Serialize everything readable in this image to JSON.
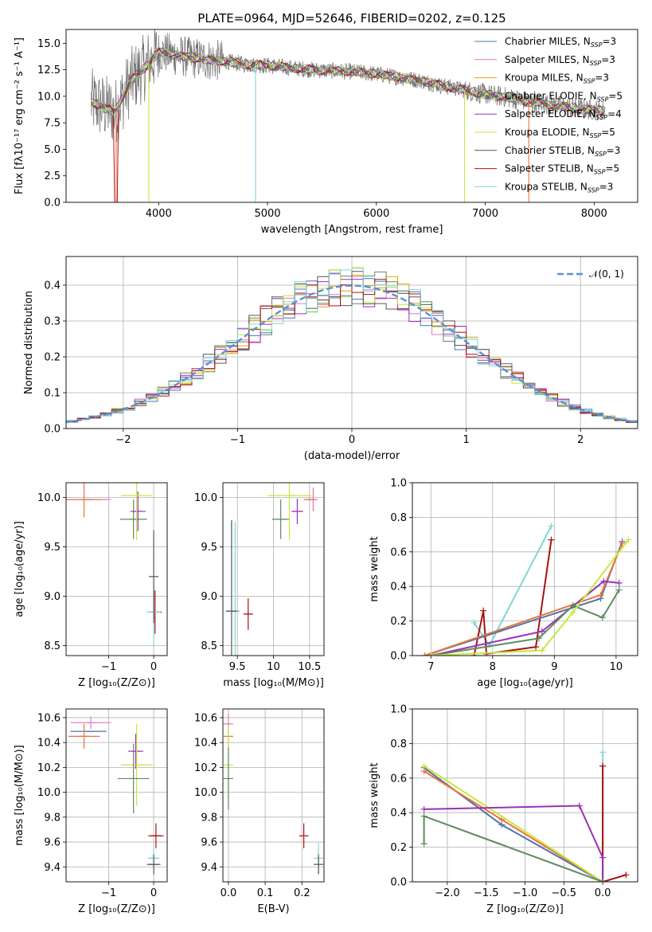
{
  "colors": {
    "chabrier_miles": "#4c72b0",
    "salpeter_miles": "#dd8452",
    "kroupa_miles": "#e6a400",
    "chabrier_elodie": "#dd6f6f",
    "salpeter_elodie": "#9b30b8",
    "kroupa_elodie": "#c8e640",
    "chabrier_stelib": "#555555",
    "salpeter_stelib": "#aa1111",
    "kroupa_stelib": "#7fd6d6",
    "model_orange": "#e8743b",
    "pink": "#e377c2",
    "sage": "#5f8a5f",
    "grid": "#b0b0b0",
    "normal": "#5b8fd6"
  },
  "chart_data": [
    {
      "id": "spectrum",
      "type": "line",
      "title": "PLATE=0964, MJD=52646, FIBERID=0202, z=0.125",
      "xlabel": "wavelength [Angstrom, rest frame]",
      "ylabel": "Flux [fλ10⁻¹⁷ erg cm⁻² s⁻¹ A⁻¹]",
      "xlim": [
        3150,
        8400
      ],
      "ylim": [
        0,
        16.3
      ],
      "xticks": [
        4000,
        5000,
        6000,
        7000,
        8000
      ],
      "yticks": [
        0.0,
        2.5,
        5.0,
        7.5,
        10.0,
        12.5,
        15.0
      ],
      "legend_position": "upper right",
      "continuum": [
        [
          3400,
          9.4
        ],
        [
          3600,
          8.5
        ],
        [
          3750,
          11.5
        ],
        [
          3900,
          13.0
        ],
        [
          4000,
          14.2
        ],
        [
          4200,
          13.8
        ],
        [
          4400,
          13.5
        ],
        [
          4600,
          13.3
        ],
        [
          4800,
          13.0
        ],
        [
          5000,
          12.9
        ],
        [
          5200,
          12.7
        ],
        [
          5400,
          12.5
        ],
        [
          5600,
          12.4
        ],
        [
          5800,
          12.3
        ],
        [
          6000,
          12.1
        ],
        [
          6200,
          11.8
        ],
        [
          6400,
          11.5
        ],
        [
          6600,
          11.0
        ],
        [
          6800,
          10.6
        ],
        [
          7000,
          10.2
        ],
        [
          7200,
          9.9
        ],
        [
          7400,
          9.5
        ],
        [
          7600,
          9.2
        ],
        [
          7800,
          8.9
        ],
        [
          8000,
          8.7
        ],
        [
          8100,
          8.6
        ]
      ],
      "series": [
        {
          "name": "Chabrier MILES, N_SSP=3",
          "label_main": "Chabrier MILES, N",
          "label_sub": "SSP",
          "label_tail": "=3",
          "color_key": "chabrier_miles"
        },
        {
          "name": "Salpeter MILES, N_SSP=3",
          "label_main": "Salpeter MILES, N",
          "label_sub": "SSP",
          "label_tail": "=3",
          "color_key": "pink"
        },
        {
          "name": "Kroupa MILES, N_SSP=3",
          "label_main": "Kroupa MILES, N",
          "label_sub": "SSP",
          "label_tail": "=3",
          "color_key": "kroupa_miles"
        },
        {
          "name": "Chabrier ELODIE, N_SSP=5",
          "label_main": "Chabrier ELODIE, N",
          "label_sub": "SSP",
          "label_tail": "=5",
          "color_key": "sage"
        },
        {
          "name": "Salpeter ELODIE, N_SSP=4",
          "label_main": "Salpeter ELODIE, N",
          "label_sub": "SSP",
          "label_tail": "=4",
          "color_key": "salpeter_elodie"
        },
        {
          "name": "Kroupa ELODIE, N_SSP=5",
          "label_main": "Kroupa ELODIE, N",
          "label_sub": "SSP",
          "label_tail": "=5",
          "color_key": "kroupa_elodie"
        },
        {
          "name": "Chabrier STELIB, N_SSP=3",
          "label_main": "Chabrier STELIB, N",
          "label_sub": "SSP",
          "label_tail": "=3",
          "color_key": "chabrier_stelib"
        },
        {
          "name": "Salpeter STELIB, N_SSP=5",
          "label_main": "Salpeter STELIB, N",
          "label_sub": "SSP",
          "label_tail": "=5",
          "color_key": "salpeter_stelib"
        },
        {
          "name": "Kroupa STELIB, N_SSP=3",
          "label_main": "Kroupa STELIB, N",
          "label_sub": "SSP",
          "label_tail": "=3",
          "color_key": "kroupa_stelib"
        }
      ]
    },
    {
      "id": "residuals",
      "type": "line",
      "xlabel": "(data-model)/error",
      "ylabel": "Normed distribution",
      "xlim": [
        -2.5,
        2.5
      ],
      "ylim": [
        0,
        0.48
      ],
      "xticks": [
        -2,
        -1,
        0,
        1,
        2
      ],
      "yticks": [
        0.0,
        0.1,
        0.2,
        0.3,
        0.4
      ],
      "grid": true,
      "reference_curve": {
        "label": "𝒩(0, 1)",
        "mean": 0,
        "sigma": 1,
        "peak": 0.3989
      },
      "histogram_bin_width": 0.1
    },
    {
      "id": "age_vs_Z",
      "type": "scatter",
      "xlabel": "Z [log₁₀(Z/Z⊙)]",
      "ylabel": "age  [log₁₀(age/yr)]",
      "xlim": [
        -1.95,
        0.3
      ],
      "ylim": [
        8.4,
        10.15
      ],
      "xticks": [
        -1,
        0
      ],
      "yticks": [
        8.5,
        9.0,
        9.5,
        10.0
      ],
      "grid": true,
      "points": [
        {
          "x": -1.5,
          "y": 9.98,
          "xerr": 0.45,
          "yerr": 0.0,
          "color_key": "chabrier_miles"
        },
        {
          "x": -1.4,
          "y": 9.98,
          "xerr": 0.45,
          "yerr": 0.0,
          "color_key": "pink"
        },
        {
          "x": -1.55,
          "y": 9.98,
          "xerr": 0.4,
          "yerr": 0.18,
          "color_key": "model_orange"
        },
        {
          "x": -0.45,
          "y": 9.78,
          "xerr": 0.3,
          "yerr": 0.2,
          "color_key": "sage"
        },
        {
          "x": -0.35,
          "y": 9.86,
          "xerr": 0.17,
          "yerr": 0.2,
          "color_key": "salpeter_elodie"
        },
        {
          "x": -0.38,
          "y": 10.02,
          "xerr": 0.35,
          "yerr": 0.45,
          "color_key": "kroupa_elodie"
        },
        {
          "x": 0.03,
          "y": 8.84,
          "xerr": 0.15,
          "yerr": 0.22,
          "color_key": "salpeter_stelib"
        },
        {
          "x": 0.0,
          "y": 8.84,
          "xerr": 0.15,
          "yerr": 0.34,
          "color_key": "kroupa_stelib"
        },
        {
          "x": 0.0,
          "y": 9.2,
          "xerr": 0.0,
          "yerr": 0.47,
          "color_key": "chabrier_stelib"
        }
      ]
    },
    {
      "id": "age_vs_mass",
      "type": "scatter",
      "xlabel": "mass [log₁₀(M/M⊙)]",
      "ylabel": "",
      "xlim": [
        9.3,
        10.7
      ],
      "ylim": [
        8.4,
        10.15
      ],
      "xticks": [
        9.5,
        10.0,
        10.5
      ],
      "yticks": [
        8.5,
        9.0,
        9.5,
        10.0
      ],
      "grid": true,
      "points": [
        {
          "x": 10.55,
          "y": 9.98,
          "xerr": 0.05,
          "yerr": 0.12,
          "color_key": "pink"
        },
        {
          "x": 10.5,
          "y": 9.98,
          "xerr": 0.08,
          "yerr": 0.0,
          "color_key": "model_orange"
        },
        {
          "x": 10.1,
          "y": 9.78,
          "xerr": 0.12,
          "yerr": 0.2,
          "color_key": "sage"
        },
        {
          "x": 10.33,
          "y": 9.86,
          "xerr": 0.08,
          "yerr": 0.13,
          "color_key": "salpeter_elodie"
        },
        {
          "x": 10.22,
          "y": 10.02,
          "xerr": 0.3,
          "yerr": 0.45,
          "color_key": "kroupa_elodie"
        },
        {
          "x": 9.65,
          "y": 8.82,
          "xerr": 0.05,
          "yerr": 0.16,
          "color_key": "salpeter_stelib"
        },
        {
          "x": 9.47,
          "y": 8.85,
          "xerr": 0.06,
          "yerr": 0.9,
          "color_key": "kroupa_stelib"
        },
        {
          "x": 9.42,
          "y": 8.85,
          "xerr": 0.08,
          "yerr": 0.92,
          "color_key": "chabrier_stelib"
        }
      ]
    },
    {
      "id": "weight_vs_age",
      "type": "line",
      "xlabel": "age  [log₁₀(age/yr)]",
      "ylabel": "mass weight",
      "xlim": [
        6.7,
        10.35
      ],
      "ylim": [
        0.0,
        1.0
      ],
      "xticks": [
        7,
        8,
        9,
        10
      ],
      "yticks": [
        0.0,
        0.2,
        0.4,
        0.6,
        0.8,
        1.0
      ],
      "grid": true,
      "series": [
        {
          "color_key": "kroupa_stelib",
          "x": [
            7.7,
            7.95,
            8.95
          ],
          "y": [
            0.19,
            0.06,
            0.75
          ]
        },
        {
          "color_key": "salpeter_stelib",
          "x": [
            7.7,
            7.85,
            7.9,
            8.7,
            8.95
          ],
          "y": [
            0.0,
            0.26,
            0.01,
            0.05,
            0.67
          ]
        },
        {
          "color_key": "chabrier_miles",
          "x": [
            6.9,
            9.75,
            10.1
          ],
          "y": [
            0.0,
            0.33,
            0.66
          ]
        },
        {
          "color_key": "model_orange",
          "x": [
            6.9,
            9.75,
            10.1
          ],
          "y": [
            0.0,
            0.35,
            0.65
          ]
        },
        {
          "color_key": "salpeter_elodie",
          "x": [
            7.0,
            8.8,
            9.8,
            10.05
          ],
          "y": [
            0.0,
            0.14,
            0.43,
            0.42
          ]
        },
        {
          "color_key": "sage",
          "x": [
            7.0,
            8.75,
            9.3,
            9.78,
            10.05
          ],
          "y": [
            0.0,
            0.1,
            0.29,
            0.22,
            0.38
          ]
        },
        {
          "color_key": "kroupa_elodie",
          "x": [
            7.0,
            8.8,
            9.3,
            10.2
          ],
          "y": [
            0.0,
            0.03,
            0.25,
            0.67
          ]
        }
      ]
    },
    {
      "id": "mass_vs_Z",
      "type": "scatter",
      "xlabel": "Z [log₁₀(Z/Z⊙)]",
      "ylabel": "mass [log₁₀(M/M⊙)]",
      "xlim": [
        -1.95,
        0.3
      ],
      "ylim": [
        9.28,
        10.67
      ],
      "xticks": [
        -1,
        0
      ],
      "yticks": [
        9.4,
        9.6,
        9.8,
        10.0,
        10.2,
        10.4,
        10.6
      ],
      "grid": true,
      "points": [
        {
          "x": -1.4,
          "y": 10.56,
          "xerr": 0.45,
          "yerr": 0.05,
          "color_key": "pink"
        },
        {
          "x": -1.45,
          "y": 10.49,
          "xerr": 0.4,
          "yerr": 0.0,
          "color_key": "chabrier_miles"
        },
        {
          "x": -1.55,
          "y": 10.45,
          "xerr": 0.35,
          "yerr": 0.1,
          "color_key": "model_orange"
        },
        {
          "x": -0.4,
          "y": 10.33,
          "xerr": 0.17,
          "yerr": 0.14,
          "color_key": "salpeter_elodie"
        },
        {
          "x": -0.38,
          "y": 10.22,
          "xerr": 0.35,
          "yerr": 0.33,
          "color_key": "kroupa_elodie"
        },
        {
          "x": -0.45,
          "y": 10.11,
          "xerr": 0.35,
          "yerr": 0.28,
          "color_key": "sage"
        },
        {
          "x": 0.05,
          "y": 9.65,
          "xerr": 0.17,
          "yerr": 0.1,
          "color_key": "salpeter_stelib"
        },
        {
          "x": 0.0,
          "y": 9.47,
          "xerr": 0.13,
          "yerr": 0.1,
          "color_key": "kroupa_stelib"
        },
        {
          "x": 0.0,
          "y": 9.42,
          "xerr": 0.15,
          "yerr": 0.08,
          "color_key": "chabrier_stelib"
        }
      ]
    },
    {
      "id": "mass_vs_ebv",
      "type": "scatter",
      "xlabel": "E(B-V)",
      "ylabel": "",
      "xlim": [
        -0.015,
        0.26
      ],
      "ylim": [
        9.28,
        10.67
      ],
      "xticks": [
        0.0,
        0.1,
        0.2
      ],
      "yticks": [
        9.4,
        9.6,
        9.8,
        10.0,
        10.2,
        10.4,
        10.6
      ],
      "grid": true,
      "points": [
        {
          "x": 0.0,
          "y": 10.55,
          "xerr": 0.0,
          "yerr": 0.08,
          "color_key": "pink"
        },
        {
          "x": 0.0,
          "y": 10.45,
          "xerr": 0.0,
          "yerr": 0.1,
          "color_key": "model_orange"
        },
        {
          "x": 0.0,
          "y": 10.22,
          "xerr": 0.0,
          "yerr": 0.32,
          "color_key": "kroupa_elodie"
        },
        {
          "x": 0.0,
          "y": 10.11,
          "xerr": 0.0,
          "yerr": 0.25,
          "color_key": "sage"
        },
        {
          "x": 0.205,
          "y": 9.65,
          "xerr": 0.0,
          "yerr": 0.1,
          "color_key": "salpeter_stelib"
        },
        {
          "x": 0.245,
          "y": 9.47,
          "xerr": 0.0,
          "yerr": 0.12,
          "color_key": "kroupa_stelib"
        },
        {
          "x": 0.245,
          "y": 9.42,
          "xerr": 0.0,
          "yerr": 0.08,
          "color_key": "chabrier_stelib"
        }
      ]
    },
    {
      "id": "weight_vs_Z",
      "type": "line",
      "xlabel": "Z [log₁₀(Z/Z⊙)]",
      "ylabel": "mass weight",
      "xlim": [
        -2.45,
        0.45
      ],
      "ylim": [
        0.0,
        1.0
      ],
      "xticks": [
        -2.0,
        -1.5,
        -1.0,
        -0.5,
        0.0
      ],
      "yticks": [
        0.0,
        0.2,
        0.4,
        0.6,
        0.8,
        1.0
      ],
      "grid": true,
      "series": [
        {
          "color_key": "kroupa_stelib",
          "x": [
            0.0,
            0.0
          ],
          "y": [
            0.75,
            0.0
          ]
        },
        {
          "color_key": "salpeter_stelib",
          "x": [
            0.0,
            0.0,
            0.3
          ],
          "y": [
            0.67,
            0.0,
            0.04
          ]
        },
        {
          "color_key": "chabrier_miles",
          "x": [
            -2.3,
            -1.3,
            0.0
          ],
          "y": [
            0.66,
            0.33,
            0.0
          ]
        },
        {
          "color_key": "model_orange",
          "x": [
            -2.3,
            -1.3,
            0.0
          ],
          "y": [
            0.64,
            0.36,
            0.0
          ]
        },
        {
          "color_key": "kroupa_elodie",
          "x": [
            -2.3,
            0.0
          ],
          "y": [
            0.67,
            0.0
          ]
        },
        {
          "color_key": "salpeter_elodie",
          "x": [
            -2.3,
            -0.3,
            0.0,
            0.0
          ],
          "y": [
            0.42,
            0.44,
            0.14,
            0.0
          ]
        },
        {
          "color_key": "sage",
          "x": [
            -2.3,
            -2.3,
            0.0
          ],
          "y": [
            0.22,
            0.38,
            0.0
          ]
        }
      ]
    }
  ]
}
